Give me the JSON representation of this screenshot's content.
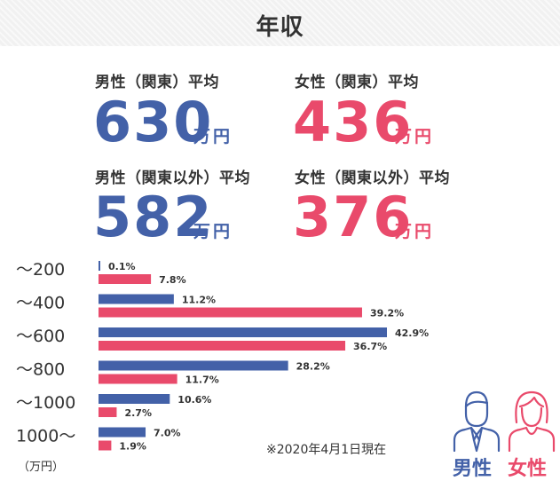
{
  "header": {
    "title": "年収"
  },
  "stats": [
    {
      "label": "男性（関東）平均",
      "value": "630",
      "unit": "万円",
      "gender": "male"
    },
    {
      "label": "女性（関東）平均",
      "value": "436",
      "unit": "万円",
      "gender": "female"
    },
    {
      "label": "男性（関東以外）平均",
      "value": "582",
      "unit": "万円",
      "gender": "male"
    },
    {
      "label": "女性（関東以外）平均",
      "value": "376",
      "unit": "万円",
      "gender": "female"
    }
  ],
  "colors": {
    "male": "#4361a8",
    "female": "#e94a6b",
    "text": "#333333"
  },
  "chart_data": {
    "type": "bar",
    "orientation": "horizontal",
    "categories": [
      "～200",
      "～400",
      "～600",
      "～800",
      "～1000",
      "1000～"
    ],
    "unit_label": "（万円）",
    "series": [
      {
        "key": "male",
        "values": [
          0.1,
          11.2,
          42.9,
          28.2,
          10.6,
          7.0
        ],
        "labels": [
          "0.1%",
          "11.2%",
          "42.9%",
          "28.2%",
          "10.6%",
          "7.0%"
        ]
      },
      {
        "key": "female",
        "values": [
          7.8,
          39.2,
          36.7,
          11.7,
          2.7,
          1.9
        ],
        "labels": [
          "7.8%",
          "39.2%",
          "36.7%",
          "11.7%",
          "2.7%",
          "1.9%"
        ]
      }
    ],
    "xlim": [
      0,
      42.9
    ]
  },
  "note": "※2020年4月1日現在",
  "legend": [
    {
      "key": "male",
      "label": "男性",
      "icon": "male-person-icon"
    },
    {
      "key": "female",
      "label": "女性",
      "icon": "female-person-icon"
    }
  ]
}
